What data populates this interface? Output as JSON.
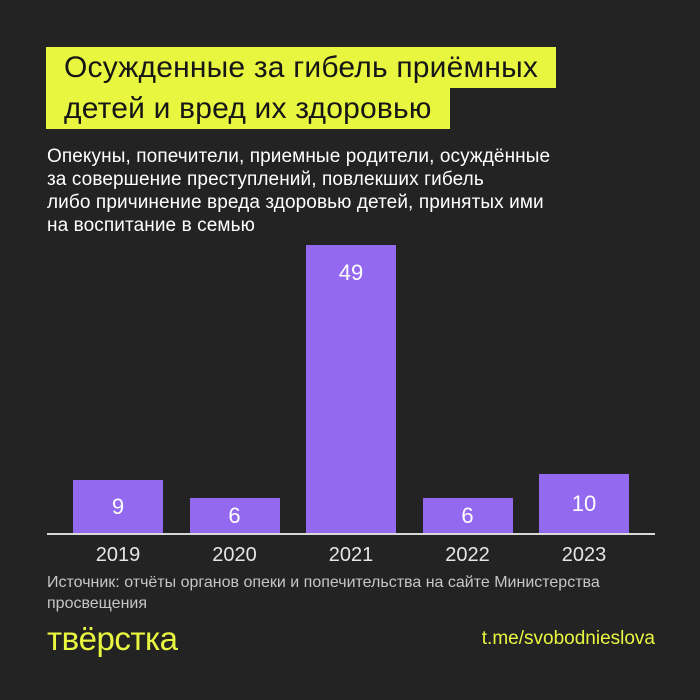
{
  "title": {
    "line1": "Осужденные за гибель приёмных",
    "line2": "детей и вред их здоровью"
  },
  "subtitle_lines": [
    "Опекуны, попечители, приемные родители, осуждённые",
    "за совершение преступлений, повлекших гибель",
    "либо причинение вреда здоровью детей, принятых ими",
    "на воспитание в семью"
  ],
  "chart_data": {
    "type": "bar",
    "categories": [
      "2019",
      "2020",
      "2021",
      "2022",
      "2023"
    ],
    "values": [
      9,
      6,
      49,
      6,
      10
    ],
    "title": "Осужденные за гибель приёмных детей и вред их здоровью",
    "xlabel": "",
    "ylabel": "",
    "ylim": [
      0,
      49
    ],
    "grid": false,
    "legend": false,
    "bar_color": "#9369F0",
    "value_label_color": "#FFFFFF",
    "axis_line_color": "#D8D8D8",
    "tick_label_color": "#E6E6E6"
  },
  "source_lines": [
    "Источник: отчёты органов опеки и попечительства на сайте Министерства",
    "просвещения"
  ],
  "footer": {
    "logo_text": "твёрстка",
    "link_text": "t.me/svobodnieslova"
  },
  "colors": {
    "background": "#232324",
    "accent_yellow": "#E9F63F",
    "bar_purple": "#9369F0",
    "title_text": "#161616",
    "body_text": "#FFFFFF",
    "source_text": "#C6C6C6"
  }
}
